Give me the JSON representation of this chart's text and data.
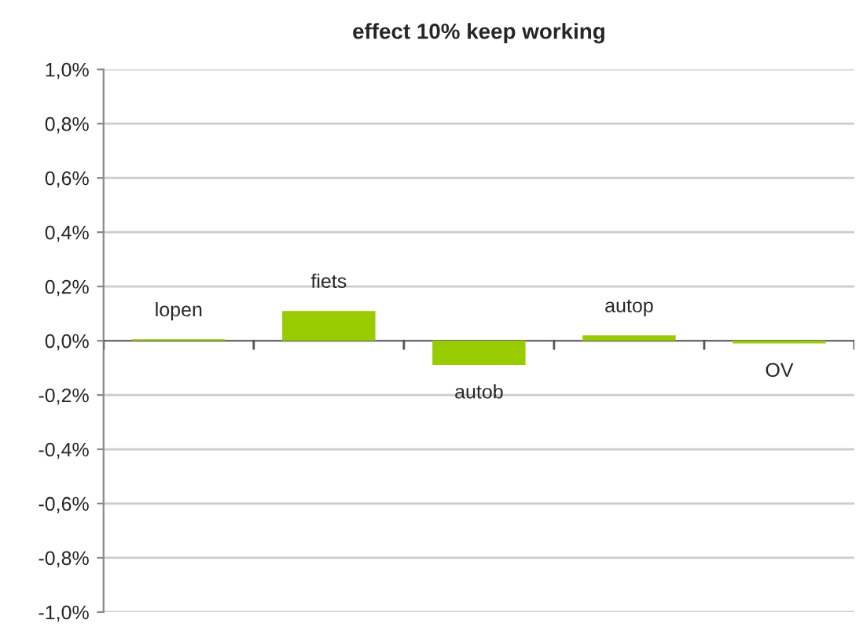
{
  "chart_data": {
    "type": "bar",
    "title": "effect 10% keep working",
    "categories": [
      "lopen",
      "fiets",
      "autob",
      "autop",
      "OV"
    ],
    "series": [
      {
        "color": "#99cc00",
        "values": [
          0.005,
          0.11,
          -0.09,
          0.02,
          -0.01
        ]
      }
    ],
    "ylim": [
      -1.0,
      1.0
    ],
    "yticks": [
      {
        "value": -1.0,
        "label": "-1,0%"
      },
      {
        "value": -0.8,
        "label": "-0,8%"
      },
      {
        "value": -0.6,
        "label": "-0,6%"
      },
      {
        "value": -0.4,
        "label": "-0,4%"
      },
      {
        "value": -0.2,
        "label": "-0,2%"
      },
      {
        "value": 0.0,
        "label": "0,0%"
      },
      {
        "value": 0.2,
        "label": "0,2%"
      },
      {
        "value": 0.4,
        "label": "0,4%"
      },
      {
        "value": 0.6,
        "label": "0,6%"
      },
      {
        "value": 0.8,
        "label": "0,8%"
      },
      {
        "value": 1.0,
        "label": "1,0%"
      }
    ],
    "grid": "y",
    "legend": false
  }
}
